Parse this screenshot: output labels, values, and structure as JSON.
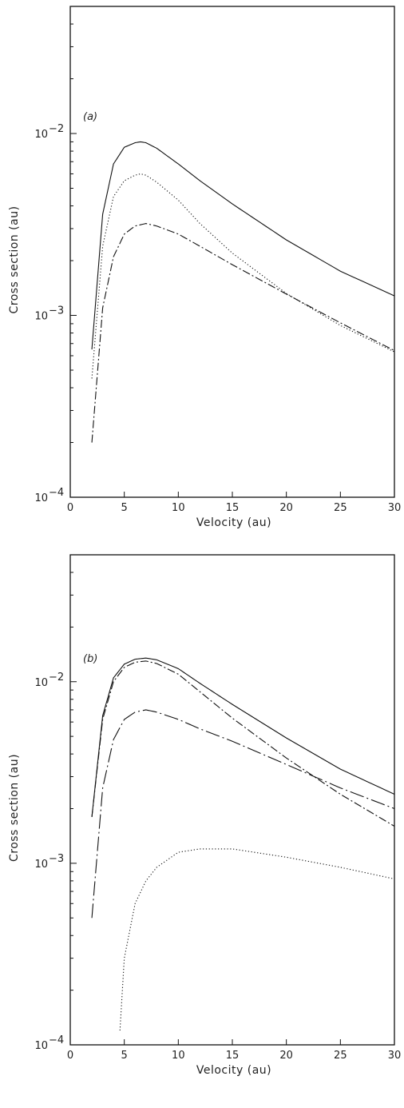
{
  "chart_data": [
    {
      "type": "line",
      "panel_label": "(a)",
      "xlabel": "Velocity (au)",
      "ylabel": "Cross section (au)",
      "xlim": [
        0,
        30
      ],
      "ylim": [
        0.0001,
        0.05
      ],
      "yscale": "log",
      "x_ticks": [
        0,
        5,
        10,
        15,
        20,
        25,
        30
      ],
      "y_ticks": [
        {
          "value": 0.0001,
          "base": "10",
          "exp": "−4"
        },
        {
          "value": 0.001,
          "base": "10",
          "exp": "−3"
        },
        {
          "value": 0.01,
          "base": "10",
          "exp": "−2"
        }
      ],
      "series": [
        {
          "style": "solid",
          "x": [
            2,
            3,
            4,
            5,
            6,
            6.5,
            7,
            8,
            10,
            12,
            15,
            20,
            25,
            30
          ],
          "y": [
            0.00065,
            0.0036,
            0.0068,
            0.0084,
            0.0089,
            0.009,
            0.0089,
            0.0083,
            0.0068,
            0.0055,
            0.0041,
            0.0026,
            0.00175,
            0.00128
          ]
        },
        {
          "style": "dotted",
          "x": [
            2,
            3,
            4,
            5,
            6,
            6.5,
            7,
            8,
            10,
            12,
            15,
            20,
            25,
            30
          ],
          "y": [
            0.00045,
            0.0024,
            0.0045,
            0.0055,
            0.0059,
            0.006,
            0.0059,
            0.0054,
            0.0043,
            0.0032,
            0.0022,
            0.00132,
            0.00088,
            0.00063
          ]
        },
        {
          "style": "dash-dot",
          "x": [
            2,
            3,
            4,
            5,
            6,
            7,
            8,
            10,
            12,
            15,
            20,
            25,
            30
          ],
          "y": [
            0.0002,
            0.0011,
            0.0021,
            0.0028,
            0.0031,
            0.0032,
            0.0031,
            0.0028,
            0.0024,
            0.0019,
            0.00131,
            0.00091,
            0.00064
          ]
        }
      ]
    },
    {
      "type": "line",
      "panel_label": "(b)",
      "xlabel": "Velocity (au)",
      "ylabel": "Cross section (au)",
      "xlim": [
        0,
        30
      ],
      "ylim": [
        0.0001,
        0.05
      ],
      "yscale": "log",
      "x_ticks": [
        0,
        5,
        10,
        15,
        20,
        25,
        30
      ],
      "y_ticks": [
        {
          "value": 0.0001,
          "base": "10",
          "exp": "−4"
        },
        {
          "value": 0.001,
          "base": "10",
          "exp": "−3"
        },
        {
          "value": 0.01,
          "base": "10",
          "exp": "−2"
        }
      ],
      "series": [
        {
          "style": "solid",
          "x": [
            2,
            3,
            4,
            5,
            6,
            7,
            8,
            10,
            12,
            15,
            20,
            25,
            30
          ],
          "y": [
            0.0018,
            0.0065,
            0.0105,
            0.0125,
            0.0133,
            0.0135,
            0.0132,
            0.0118,
            0.0098,
            0.0075,
            0.0049,
            0.0033,
            0.0024
          ]
        },
        {
          "style": "dash-dot",
          "x": [
            2,
            3,
            4,
            5,
            6,
            7,
            8,
            10,
            12,
            15,
            20,
            25,
            30
          ],
          "y": [
            0.0018,
            0.0062,
            0.01,
            0.012,
            0.0128,
            0.013,
            0.0126,
            0.011,
            0.0088,
            0.0063,
            0.0038,
            0.0024,
            0.0016
          ]
        },
        {
          "style": "long-dash-dot",
          "x": [
            2,
            3,
            4,
            5,
            6,
            7,
            8,
            10,
            12,
            15,
            20,
            25,
            30
          ],
          "y": [
            0.0005,
            0.0026,
            0.0048,
            0.0062,
            0.0068,
            0.007,
            0.0068,
            0.0062,
            0.0055,
            0.0047,
            0.0035,
            0.0026,
            0.002
          ]
        },
        {
          "style": "dotted",
          "x": [
            4.6,
            5,
            6,
            7,
            8,
            10,
            12,
            15,
            20,
            25,
            30
          ],
          "y": [
            0.00012,
            0.0003,
            0.0006,
            0.0008,
            0.00095,
            0.00115,
            0.0012,
            0.0012,
            0.00108,
            0.00095,
            0.00082
          ]
        }
      ]
    }
  ]
}
